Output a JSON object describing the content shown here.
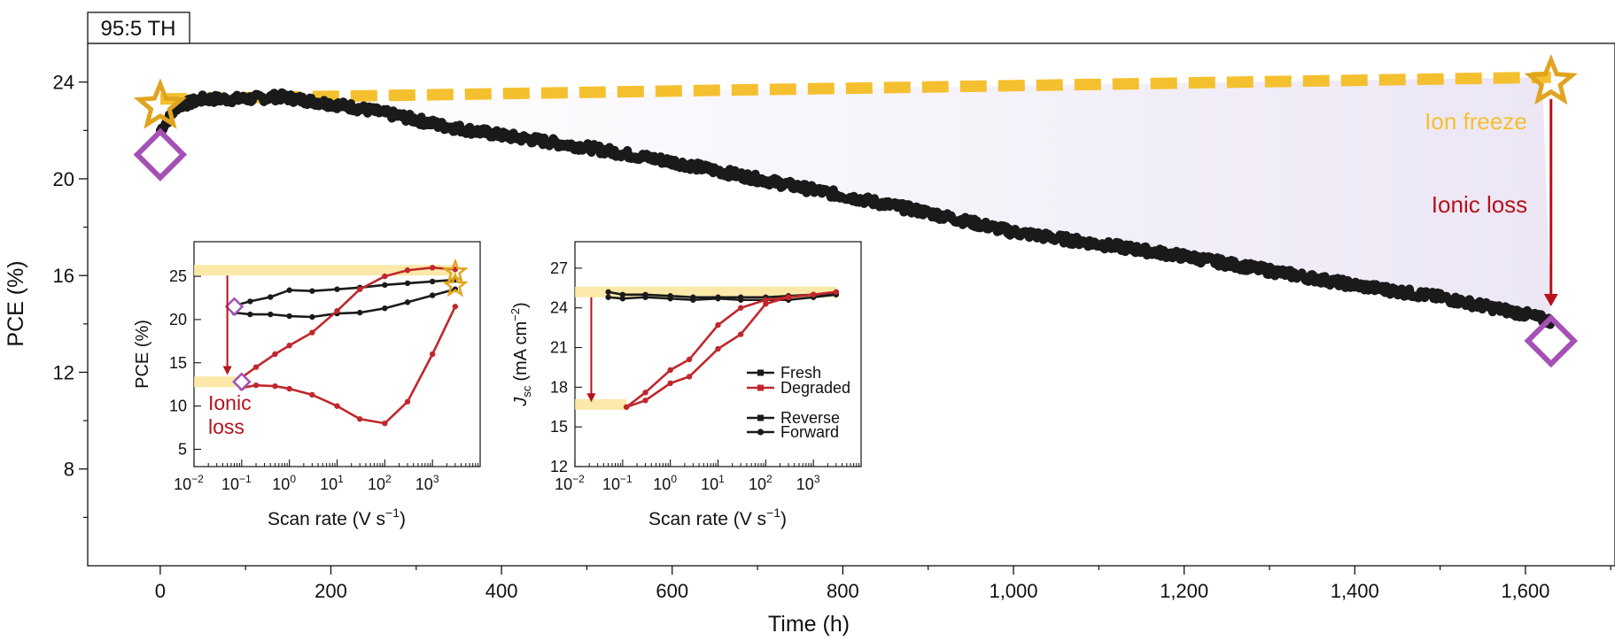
{
  "chart_data": [
    {
      "type": "line",
      "tag_label": "95:5 TH",
      "xlabel": "Time (h)",
      "ylabel": "PCE (%)",
      "xlim": [
        -85,
        1705
      ],
      "ylim": [
        4,
        25.6
      ],
      "x_ticks": [
        0,
        200,
        400,
        600,
        800,
        1000,
        1200,
        1400,
        1600
      ],
      "x_tick_labels": [
        "0",
        "200",
        "400",
        "600",
        "800",
        "1,000",
        "1,200",
        "1,400",
        "1,600"
      ],
      "y_ticks": [
        8,
        12,
        16,
        20,
        24
      ],
      "y_tick_labels": [
        "8",
        "12",
        "16",
        "20",
        "24"
      ],
      "series": [
        {
          "role": "measured",
          "color": "#1a1a1a",
          "x": [
            0,
            20,
            50,
            100,
            140,
            180,
            220,
            280,
            330,
            400,
            500,
            600,
            700,
            800,
            900,
            1000,
            1100,
            1200,
            1300,
            1400,
            1500,
            1600,
            1630
          ],
          "y": [
            22.0,
            23.0,
            23.3,
            23.3,
            23.4,
            23.2,
            23.0,
            22.6,
            22.2,
            21.8,
            21.3,
            20.7,
            20.0,
            19.3,
            18.6,
            17.8,
            17.3,
            16.8,
            16.2,
            15.6,
            15.1,
            14.4,
            14.1
          ]
        },
        {
          "role": "ion-freeze",
          "color": "#f5c02f",
          "x": [
            0,
            1630
          ],
          "y": [
            23.3,
            24.2
          ]
        }
      ],
      "markers": [
        {
          "shape": "star",
          "x": 0,
          "y": 23.0,
          "color": "#e0a41f"
        },
        {
          "shape": "diamond",
          "x": 0,
          "y": 21.0,
          "color": "#a550b4"
        },
        {
          "shape": "star",
          "x": 1630,
          "y": 24.0,
          "color": "#e0a41f"
        },
        {
          "shape": "diamond",
          "x": 1630,
          "y": 13.3,
          "color": "#a550b4"
        }
      ],
      "annotations": {
        "ion_freeze": "Ion freeze",
        "ionic_loss": "Ionic loss"
      },
      "colors": {
        "ion_freeze": "#f5c02f",
        "ionic_loss": "#b5121b",
        "shade": "#ece6f5",
        "diamond": "#a550b4",
        "star": "#e0a41f"
      }
    },
    {
      "type": "line",
      "xlabel": "Scan rate (V s",
      "xlabel_sup": "−1",
      "xlabel_end": ")",
      "ylabel": "PCE (%)",
      "xscale": "log",
      "xlim": [
        0.01,
        10000
      ],
      "ylim": [
        3,
        29
      ],
      "x_tick_exps": [
        "−2",
        "−1",
        "0",
        "1",
        "2",
        "3"
      ],
      "y_ticks": [
        5,
        10,
        15,
        20,
        25
      ],
      "y_tick_labels": [
        "5",
        "10",
        "15",
        "20",
        "25"
      ],
      "series": [
        {
          "color": "#1a1a1a",
          "x": [
            0.07,
            0.15,
            0.4,
            1,
            3,
            10,
            30,
            100,
            300,
            1000,
            3000
          ],
          "y": [
            21.6,
            22.1,
            22.6,
            23.4,
            23.3,
            23.5,
            23.7,
            24.0,
            24.2,
            24.4,
            24.6
          ]
        },
        {
          "color": "#1a1a1a",
          "x": [
            0.07,
            0.15,
            0.4,
            1,
            3,
            10,
            30,
            100,
            300,
            1000,
            3000
          ],
          "y": [
            20.8,
            20.6,
            20.6,
            20.4,
            20.3,
            20.7,
            20.8,
            21.3,
            22.0,
            22.8,
            23.5
          ]
        },
        {
          "color": "#c0272d",
          "x": [
            0.1,
            0.2,
            0.5,
            1,
            3,
            10,
            30,
            100,
            300,
            1000,
            3000
          ],
          "y": [
            13.3,
            14.5,
            16.0,
            17.0,
            18.5,
            21.0,
            23.5,
            25.0,
            25.7,
            26.0,
            25.8
          ]
        },
        {
          "color": "#c0272d",
          "x": [
            0.1,
            0.2,
            0.5,
            1,
            3,
            10,
            30,
            100,
            300,
            1000,
            3000
          ],
          "y": [
            12.1,
            12.4,
            12.3,
            12.0,
            11.3,
            10.0,
            8.5,
            8.0,
            10.5,
            16.0,
            21.5
          ]
        }
      ],
      "markers": [
        {
          "shape": "diamond",
          "x": 0.07,
          "y": 21.5,
          "color": "#a550b4"
        },
        {
          "shape": "diamond",
          "x": 0.1,
          "y": 12.8,
          "color": "#a550b4"
        },
        {
          "shape": "star",
          "x": 3000,
          "y": 25.5,
          "color": "#e0a41f"
        },
        {
          "shape": "star",
          "x": 3000,
          "y": 23.9,
          "color": "#e0a41f"
        }
      ],
      "bands": [
        {
          "y": 25.7,
          "x_start": 0.01,
          "x_end": 3000
        },
        {
          "y": 12.8,
          "x_start": 0.01,
          "x_end": 0.1
        }
      ],
      "annotations": {
        "ionic_loss_line1": "Ionic",
        "ionic_loss_line2": "loss"
      }
    },
    {
      "type": "line",
      "xlabel": "Scan rate (V s",
      "xlabel_sup": "−1",
      "xlabel_end": ")",
      "ylabel_main": "J",
      "ylabel_sub": "sc",
      "ylabel_unit": "(mA cm",
      "ylabel_sup": "−2",
      "ylabel_end": ")",
      "xscale": "log",
      "xlim": [
        0.01,
        10000
      ],
      "ylim": [
        12,
        29
      ],
      "x_tick_exps": [
        "−2",
        "−1",
        "0",
        "1",
        "2",
        "3"
      ],
      "y_ticks": [
        12,
        15,
        18,
        21,
        24,
        27
      ],
      "y_tick_labels": [
        "12",
        "15",
        "18",
        "21",
        "24",
        "27"
      ],
      "series": [
        {
          "color": "#1a1a1a",
          "x": [
            0.05,
            0.1,
            0.3,
            1,
            3,
            10,
            30,
            100,
            300,
            1000,
            3000
          ],
          "y": [
            25.2,
            25.0,
            25.0,
            24.9,
            24.8,
            24.8,
            24.8,
            24.8,
            24.9,
            25.0,
            25.1
          ]
        },
        {
          "color": "#1a1a1a",
          "x": [
            0.05,
            0.1,
            0.3,
            1,
            3,
            10,
            30,
            100,
            300,
            1000,
            3000
          ],
          "y": [
            24.8,
            24.7,
            24.8,
            24.7,
            24.6,
            24.7,
            24.6,
            24.6,
            24.6,
            24.8,
            25.0
          ]
        },
        {
          "color": "#c0272d",
          "x": [
            0.12,
            0.3,
            1,
            2.5,
            10,
            30,
            100,
            300,
            1000,
            3000
          ],
          "y": [
            16.5,
            17.6,
            19.3,
            20.1,
            22.7,
            24.0,
            24.6,
            24.8,
            25.0,
            25.2
          ]
        },
        {
          "color": "#c0272d",
          "x": [
            0.12,
            0.3,
            1,
            2.5,
            10,
            30,
            100,
            300,
            1000,
            3000
          ],
          "y": [
            16.5,
            17.0,
            18.3,
            18.8,
            20.9,
            22.0,
            24.3,
            24.8,
            25.0,
            25.2
          ]
        }
      ],
      "bands": [
        {
          "y": 25.2,
          "x_start": 0.01,
          "x_end": 3000
        },
        {
          "y": 16.7,
          "x_start": 0.01,
          "x_end": 0.12
        }
      ],
      "legend": {
        "placement": "bottom-right",
        "entries": [
          {
            "label": "Fresh",
            "color": "#1a1a1a",
            "marker": "square"
          },
          {
            "label": "Degraded",
            "color": "#c0272d",
            "marker": "square"
          },
          {
            "label": "Reverse",
            "color": "#1a1a1a",
            "marker": "square"
          },
          {
            "label": "Forward",
            "color": "#1a1a1a",
            "marker": "circle"
          }
        ]
      }
    }
  ]
}
